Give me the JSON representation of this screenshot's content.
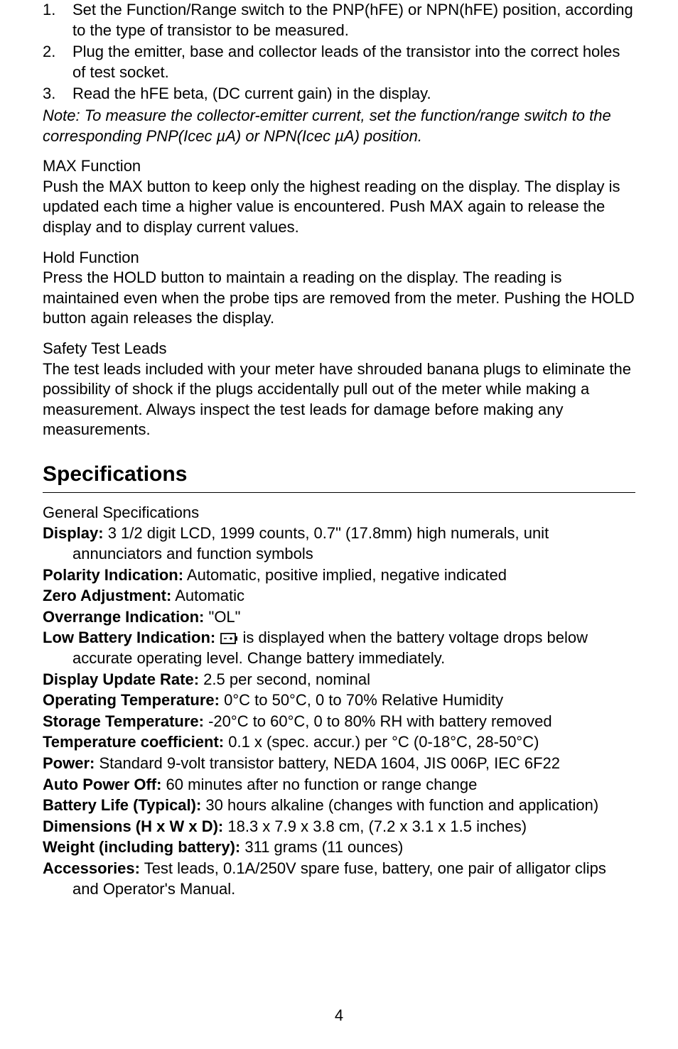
{
  "steps": [
    {
      "n": "1.",
      "text": "Set the Function/Range switch to the PNP(hFE) or NPN(hFE) position, according to the type of transistor to be measured."
    },
    {
      "n": "2.",
      "text": "Plug the emitter, base and collector leads of the transistor into the correct holes of test socket."
    },
    {
      "n": "3.",
      "text": "Read the hFE beta, (DC current gain) in the display."
    }
  ],
  "note": "Note: To measure the collector-emitter current, set the function/range switch to the corresponding PNP(Icec µA) or NPN(Icec µA) position.",
  "sections": [
    {
      "title": "MAX Function",
      "body": "Push the MAX button to keep only the highest reading on the display. The display is updated each time a higher value is encountered. Push MAX again to release the display and to display current values."
    },
    {
      "title": "Hold Function",
      "body": "Press the HOLD button to maintain a reading on the display. The reading is maintained even when the probe tips are removed from the meter. Pushing the HOLD button again releases the display."
    },
    {
      "title": "Safety Test Leads",
      "body": "The test leads included with your meter have shrouded banana plugs to eliminate the possibility of shock if the plugs accidentally pull out of the meter while making a measurement. Always inspect the test leads for damage before making any measurements."
    }
  ],
  "specs_heading": "Specifications",
  "general_label": "General Specifications",
  "specs": [
    {
      "label": "Display:",
      "value": " 3 1/2 digit LCD, 1999 counts, 0.7\" (17.8mm) high numerals, unit annunciators and function symbols"
    },
    {
      "label": "Polarity Indication:",
      "value": " Automatic, positive implied, negative indicated"
    },
    {
      "label": "Zero Adjustment:",
      "value": " Automatic"
    },
    {
      "label": "Overrange Indication:",
      "value": " \"OL\""
    },
    {
      "label": "Low Battery Indication:",
      "value_after_icon": " is displayed when the battery voltage drops below accurate operating level. Change battery immediately.",
      "has_icon": true
    },
    {
      "label": "Display Update Rate:",
      "value": " 2.5 per second, nominal"
    },
    {
      "label": "Operating Temperature:",
      "value": " 0°C to 50°C, 0 to 70% Relative Humidity"
    },
    {
      "label": "Storage Temperature:",
      "value": " -20°C to 60°C, 0 to 80% RH with battery removed"
    },
    {
      "label": "Temperature coefficient:",
      "value": " 0.1 x (spec. accur.) per °C (0-18°C, 28-50°C)"
    },
    {
      "label": "Power:",
      "value": " Standard 9-volt transistor battery, NEDA 1604, JIS 006P, IEC 6F22"
    },
    {
      "label": "Auto Power Off:",
      "value": " 60 minutes after no function or range change"
    },
    {
      "label": "Battery Life (Typical):",
      "value": " 30 hours alkaline (changes with function and application)"
    },
    {
      "label": "Dimensions (H x W x D):",
      "value": " 18.3 x 7.9 x 3.8 cm, (7.2 x 3.1 x 1.5 inches)"
    },
    {
      "label": "Weight (including battery):",
      "value": " 311 grams (11 ounces)"
    },
    {
      "label": "Accessories:",
      "value": " Test leads, 0.1A/250V spare fuse, battery, one pair of alligator clips and Operator's Manual."
    }
  ],
  "page_number": "4",
  "colors": {
    "text": "#000000",
    "bg": "#ffffff",
    "rule": "#000000"
  },
  "typography": {
    "body_pt": 22,
    "heading_pt": 30,
    "heading_weight": 800,
    "label_weight": 700
  }
}
